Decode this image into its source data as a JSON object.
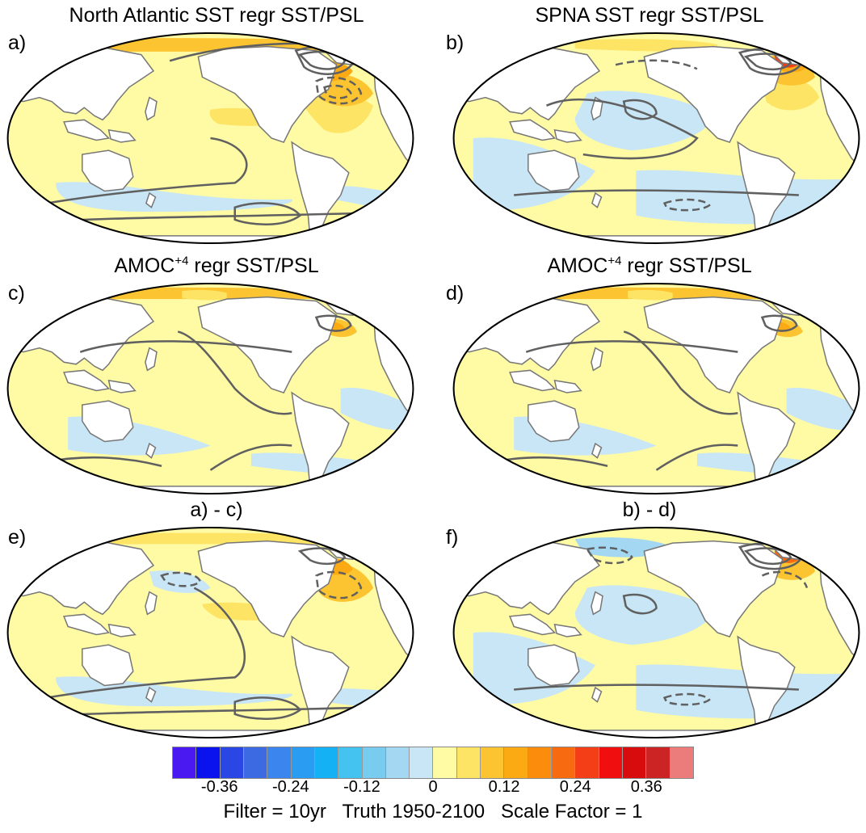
{
  "panels": [
    {
      "letter": "a)",
      "title": "North Atlantic SST regr SST/PSL",
      "title_sup": "",
      "title_end": "",
      "variant": "natl"
    },
    {
      "letter": "b)",
      "title": "SPNA SST regr SST/PSL",
      "title_sup": "",
      "title_end": "",
      "variant": "spna"
    },
    {
      "letter": "c)",
      "title": "AMOC",
      "title_sup": "+4",
      "title_end": " regr SST/PSL",
      "variant": "amoc"
    },
    {
      "letter": "d)",
      "title": "AMOC",
      "title_sup": "+4",
      "title_end": " regr SST/PSL",
      "variant": "amoc"
    },
    {
      "letter": "e)",
      "title": "a) - c)",
      "title_sup": "",
      "title_end": "",
      "variant": "diffa"
    },
    {
      "letter": "f)",
      "title": "b) - d)",
      "title_sup": "",
      "title_end": "",
      "variant": "diffb"
    }
  ],
  "colorbar": {
    "colors": [
      "#4a18f0",
      "#0a12ee",
      "#2a46e4",
      "#3c6ae2",
      "#3a86ee",
      "#2a9cf2",
      "#14b2f4",
      "#44c2f0",
      "#78ccf0",
      "#a4d8f2",
      "#c8e6f6",
      "#fffaa4",
      "#fde464",
      "#fcc430",
      "#fcaa14",
      "#fc8c0c",
      "#f86a10",
      "#f43e18",
      "#f00e0e",
      "#d80c0c",
      "#cc2424",
      "#ec7c7c"
    ],
    "ticks": [
      "-0.36",
      "-0.24",
      "-0.12",
      "0",
      "0.12",
      "0.24",
      "0.36"
    ],
    "tick_boundary_index": [
      2,
      5,
      8,
      11,
      14,
      17,
      20
    ]
  },
  "footer": {
    "text": "Filter = 10yr   Truth 1950-2100   Scale Factor = 1"
  },
  "map_colors": {
    "ocean_neutral": "#fffaa4",
    "cool": "#c8e6f6",
    "cool2": "#a4d8f2",
    "warm1": "#fde464",
    "warm2": "#fcc430",
    "warm3": "#fcaa14",
    "warm4": "#f86a10",
    "warm5": "#f43e18",
    "land": "#ffffff",
    "contour": "#606060"
  }
}
